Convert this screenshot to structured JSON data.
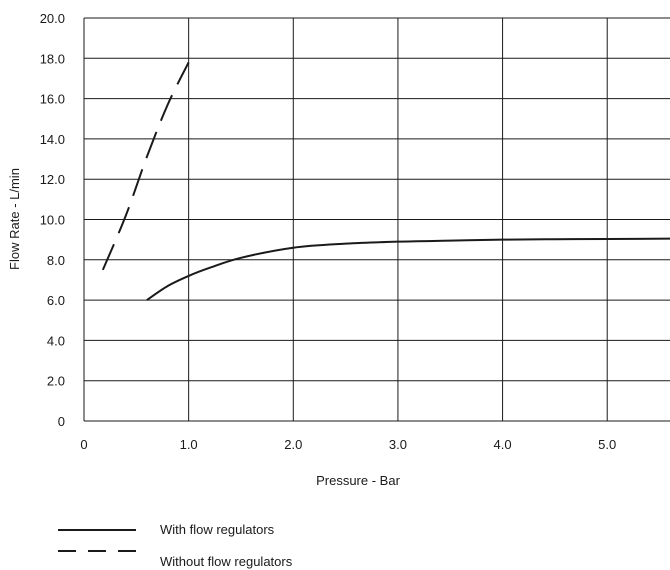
{
  "chart_data": {
    "type": "line",
    "xlabel": "Pressure - Bar",
    "ylabel": "Flow Rate - L/min",
    "xlim": [
      0,
      5.6
    ],
    "ylim": [
      0,
      20
    ],
    "x_ticks": [
      0,
      1.0,
      2.0,
      3.0,
      4.0,
      5.0
    ],
    "x_tick_labels": [
      "0",
      "1.0",
      "2.0",
      "3.0",
      "4.0",
      "5.0"
    ],
    "y_ticks": [
      0,
      2,
      4,
      6,
      8,
      10,
      12,
      14,
      16,
      18,
      20
    ],
    "y_tick_labels": [
      "0",
      "2.0",
      "4.0",
      "6.0",
      "8.0",
      "10.0",
      "12.0",
      "14.0",
      "16.0",
      "18.0",
      "20.0"
    ],
    "x_grid_lines": [
      1.0,
      2.0,
      3.0,
      4.0,
      5.0
    ],
    "grid": true,
    "legend_position": "bottom-left",
    "series": [
      {
        "name": "With flow regulators",
        "line_style": "solid",
        "color": "#1a1a1a",
        "x": [
          0.6,
          0.8,
          1.0,
          1.2,
          1.5,
          2.0,
          2.5,
          3.0,
          3.5,
          4.0,
          4.5,
          5.0,
          5.6
        ],
        "y": [
          6.0,
          6.7,
          7.2,
          7.6,
          8.1,
          8.6,
          8.8,
          8.9,
          8.95,
          9.0,
          9.02,
          9.03,
          9.05
        ]
      },
      {
        "name": "Without flow regulators",
        "line_style": "dashed",
        "color": "#1a1a1a",
        "x": [
          0.18,
          0.4,
          0.6,
          0.8,
          1.0
        ],
        "y": [
          7.5,
          10.2,
          13.1,
          15.7,
          17.8
        ]
      }
    ]
  }
}
